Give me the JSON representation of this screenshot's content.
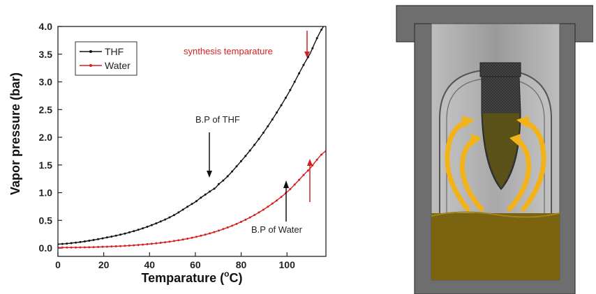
{
  "chart_data": {
    "type": "line",
    "xlabel": "Temparature (",
    "xlabel_unit_degree": "o",
    "xlabel_unit_tail": "C)",
    "ylabel": "Vapor pressure (bar)",
    "xlim": [
      0,
      117
    ],
    "ylim": [
      -0.15,
      4.0
    ],
    "x_ticks": [
      0,
      20,
      40,
      60,
      80,
      100
    ],
    "x_tick_labels": [
      "0",
      "20",
      "40",
      "60",
      "80",
      "100"
    ],
    "y_ticks": [
      0.0,
      0.5,
      1.0,
      1.5,
      2.0,
      2.5,
      3.0,
      3.5,
      4.0
    ],
    "y_tick_labels": [
      "0.0",
      "0.5",
      "1.0",
      "1.5",
      "2.0",
      "2.5",
      "3.0",
      "3.5",
      "4.0"
    ],
    "legend_position": "top-left",
    "series": [
      {
        "name": "THF",
        "color": "#111111",
        "x": [
          0,
          10,
          20,
          30,
          40,
          50,
          60,
          66,
          70,
          80,
          90,
          100,
          110,
          117
        ],
        "values": [
          0.07,
          0.11,
          0.18,
          0.27,
          0.4,
          0.58,
          0.83,
          1.01,
          1.15,
          1.57,
          2.1,
          2.75,
          3.5,
          4.05
        ]
      },
      {
        "name": "Water",
        "color": "#d42020",
        "x": [
          0,
          10,
          20,
          30,
          40,
          50,
          60,
          70,
          80,
          90,
          100,
          110,
          117
        ],
        "values": [
          0.01,
          0.012,
          0.023,
          0.042,
          0.074,
          0.123,
          0.199,
          0.312,
          0.474,
          0.701,
          1.01,
          1.43,
          1.75
        ]
      }
    ],
    "annotations": [
      {
        "text": "synthesis temparature",
        "color": "#d42020"
      },
      {
        "text": "B.P of THF",
        "color": "#222222"
      },
      {
        "text": "B.P of Water",
        "color": "#222222"
      }
    ]
  },
  "colors": {
    "vessel_wall": "#6e6e6e",
    "vessel_inner": "#a8a8a8",
    "liquid": "#7a6410",
    "arrows": "#f2b21a",
    "tube": "#353535",
    "tube_liquid": "#5a5218"
  }
}
